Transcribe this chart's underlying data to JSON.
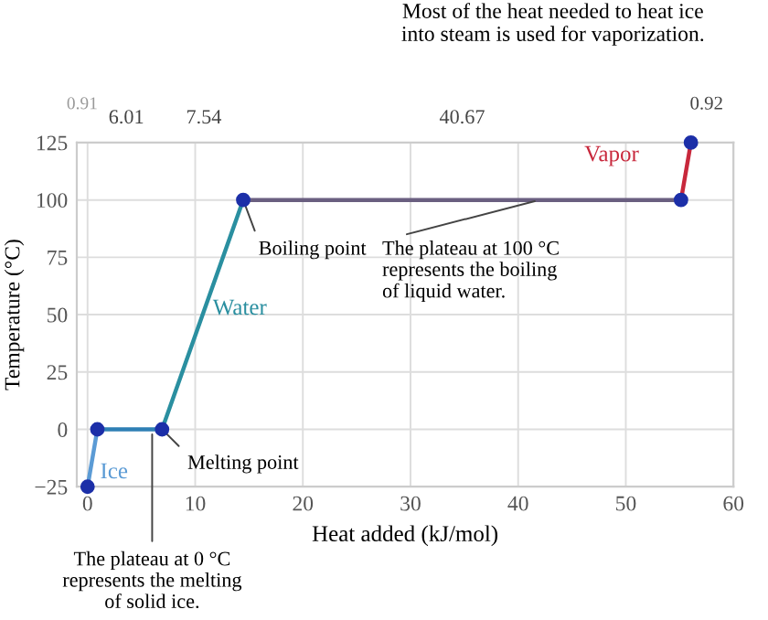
{
  "chart_data": {
    "type": "line",
    "xlabel": "Heat added (kJ/mol)",
    "ylabel": "Temperature (°C)",
    "xlim": [
      -1,
      60
    ],
    "xticks": [
      0,
      10,
      20,
      30,
      40,
      50,
      60
    ],
    "ylim": [
      -25,
      125
    ],
    "yticks": [
      -25,
      0,
      25,
      50,
      75,
      100,
      125
    ],
    "grid": true,
    "line_style": "solid",
    "series": [
      {
        "name": "Ice",
        "color": "#5b9bd5",
        "x": [
          0,
          0.91
        ],
        "values": [
          -25,
          0
        ]
      },
      {
        "color": "#2f7fb5",
        "x": [
          0.91,
          6.92
        ],
        "values": [
          0,
          0
        ]
      },
      {
        "name": "Water",
        "color": "#2a8fa0",
        "x": [
          6.92,
          14.46
        ],
        "values": [
          0,
          100
        ]
      },
      {
        "color": "#6a5f80",
        "x": [
          14.46,
          55.13
        ],
        "values": [
          100,
          100
        ]
      },
      {
        "name": "Vapor",
        "color": "#c8283c",
        "x": [
          55.13,
          56.05
        ],
        "values": [
          100,
          125
        ]
      },
      {
        "type": "scatter",
        "marker": "circle",
        "color": "#1c2fa8",
        "x": [
          0,
          0.91,
          6.92,
          14.46,
          55.13,
          56.05
        ],
        "values": [
          -25,
          0,
          0,
          100,
          100,
          125
        ]
      }
    ],
    "annotations": [
      {
        "text": "Boiling point",
        "x": 14.46,
        "y": 100
      },
      {
        "text": "Melting point",
        "x": 6.92,
        "y": 0
      },
      {
        "text": "The plateau at 0 °C\nrepresents the melting\nof solid ice.",
        "x": 6,
        "y": 0
      },
      {
        "text": "The plateau at 100 °C\nrepresents the boiling\nof liquid water.",
        "x": 42,
        "y": 100
      },
      "Most of the heat needed to heat ice\ninto steam is used for vaporization.",
      "0.91",
      "6.01",
      "7.54",
      "40.67",
      "0.92"
    ]
  }
}
